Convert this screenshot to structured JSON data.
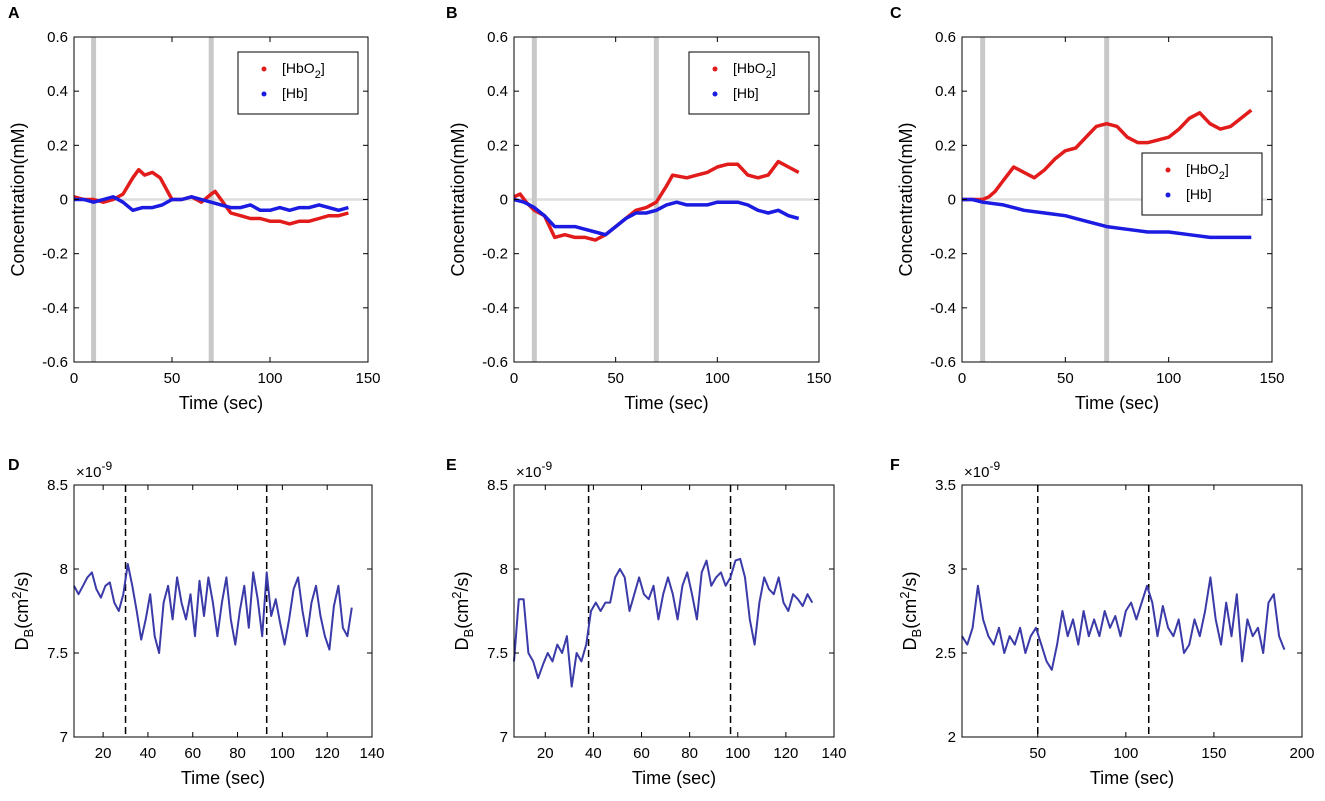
{
  "colors": {
    "hbo2": "#e21b1b",
    "hb": "#1b1be2",
    "db": "#3a3aa8",
    "marker": "#c8c8c8",
    "zero": "#dddddd",
    "dashed": "#000000"
  },
  "chart_data": [
    {
      "panel": "A",
      "type": "line",
      "xlabel": "Time  (sec)",
      "ylabel": "Concentration(mM)",
      "xlim": [
        0,
        150
      ],
      "ylim": [
        -0.6,
        0.6
      ],
      "xticks": [
        0,
        50,
        100,
        150
      ],
      "xtick_labels": [
        "0",
        "50",
        "100",
        "150"
      ],
      "yticks": [
        -0.6,
        -0.4,
        -0.2,
        0,
        0.2,
        0.4,
        0.6
      ],
      "ytick_labels": [
        "-0.6",
        "-0.4",
        "-0.2",
        "0",
        "0.2",
        "0.4",
        "0.6"
      ],
      "markers": [
        10,
        70
      ],
      "legend_position": "top-right",
      "series": [
        {
          "name": "[HbO2]",
          "label_main": "[HbO",
          "label_sub": "2",
          "label_tail": "]",
          "color_key": "hbo2",
          "x": [
            0,
            5,
            10,
            15,
            20,
            25,
            30,
            33,
            36,
            40,
            44,
            47,
            50,
            55,
            60,
            65,
            70,
            72,
            75,
            80,
            85,
            90,
            95,
            100,
            105,
            110,
            115,
            120,
            125,
            130,
            135,
            140
          ],
          "y": [
            0.01,
            0.0,
            0.0,
            -0.01,
            0.0,
            0.02,
            0.08,
            0.11,
            0.09,
            0.1,
            0.08,
            0.04,
            0.0,
            0.0,
            0.01,
            -0.01,
            0.02,
            0.03,
            0.0,
            -0.05,
            -0.06,
            -0.07,
            -0.07,
            -0.08,
            -0.08,
            -0.09,
            -0.08,
            -0.08,
            -0.07,
            -0.06,
            -0.06,
            -0.05
          ]
        },
        {
          "name": "[Hb]",
          "label_main": "[Hb]",
          "label_sub": "",
          "label_tail": "",
          "color_key": "hb",
          "x": [
            0,
            5,
            10,
            15,
            20,
            25,
            30,
            35,
            40,
            45,
            50,
            55,
            60,
            65,
            70,
            75,
            80,
            85,
            90,
            95,
            100,
            105,
            110,
            115,
            120,
            125,
            130,
            135,
            140
          ],
          "y": [
            0.0,
            0.0,
            -0.01,
            0.0,
            0.01,
            -0.01,
            -0.04,
            -0.03,
            -0.03,
            -0.02,
            0.0,
            0.0,
            0.01,
            0.0,
            -0.01,
            -0.02,
            -0.03,
            -0.03,
            -0.02,
            -0.04,
            -0.04,
            -0.03,
            -0.04,
            -0.03,
            -0.03,
            -0.02,
            -0.03,
            -0.04,
            -0.03
          ]
        }
      ]
    },
    {
      "panel": "B",
      "type": "line",
      "xlabel": "Time  (sec)",
      "ylabel": "Concentration(mM)",
      "xlim": [
        0,
        150
      ],
      "ylim": [
        -0.6,
        0.6
      ],
      "xticks": [
        0,
        50,
        100,
        150
      ],
      "xtick_labels": [
        "0",
        "50",
        "100",
        "150"
      ],
      "yticks": [
        -0.6,
        -0.4,
        -0.2,
        0,
        0.2,
        0.4,
        0.6
      ],
      "ytick_labels": [
        "-0.6",
        "-0.4",
        "-0.2",
        "0",
        "0.2",
        "0.4",
        "0.6"
      ],
      "markers": [
        10,
        70
      ],
      "legend_position": "top-right",
      "series": [
        {
          "name": "[HbO2]",
          "label_main": "[HbO",
          "label_sub": "2",
          "label_tail": "]",
          "color_key": "hbo2",
          "x": [
            0,
            3,
            6,
            10,
            15,
            20,
            25,
            30,
            35,
            40,
            45,
            50,
            55,
            60,
            65,
            70,
            75,
            78,
            85,
            90,
            95,
            100,
            105,
            110,
            115,
            120,
            125,
            130,
            135,
            140
          ],
          "y": [
            0.01,
            0.02,
            -0.01,
            -0.04,
            -0.06,
            -0.14,
            -0.13,
            -0.14,
            -0.14,
            -0.15,
            -0.13,
            -0.1,
            -0.07,
            -0.04,
            -0.03,
            -0.01,
            0.05,
            0.09,
            0.08,
            0.09,
            0.1,
            0.12,
            0.13,
            0.13,
            0.09,
            0.08,
            0.09,
            0.14,
            0.12,
            0.1
          ]
        },
        {
          "name": "[Hb]",
          "label_main": "[Hb]",
          "label_sub": "",
          "label_tail": "",
          "color_key": "hb",
          "x": [
            0,
            5,
            10,
            15,
            20,
            25,
            30,
            35,
            40,
            45,
            50,
            55,
            60,
            65,
            70,
            75,
            80,
            85,
            90,
            95,
            100,
            105,
            110,
            115,
            120,
            125,
            130,
            135,
            140
          ],
          "y": [
            0.0,
            -0.01,
            -0.03,
            -0.06,
            -0.1,
            -0.1,
            -0.1,
            -0.11,
            -0.12,
            -0.13,
            -0.1,
            -0.07,
            -0.05,
            -0.05,
            -0.04,
            -0.02,
            -0.01,
            -0.02,
            -0.02,
            -0.02,
            -0.01,
            -0.01,
            -0.01,
            -0.02,
            -0.04,
            -0.05,
            -0.04,
            -0.06,
            -0.07
          ]
        }
      ]
    },
    {
      "panel": "C",
      "type": "line",
      "xlabel": "Time  (sec)",
      "ylabel": "Concentration(mM)",
      "xlim": [
        0,
        150
      ],
      "ylim": [
        -0.6,
        0.6
      ],
      "xticks": [
        0,
        50,
        100,
        150
      ],
      "xtick_labels": [
        "0",
        "50",
        "100",
        "150"
      ],
      "yticks": [
        -0.6,
        -0.4,
        -0.2,
        0,
        0.2,
        0.4,
        0.6
      ],
      "ytick_labels": [
        "-0.6",
        "-0.4",
        "-0.2",
        "0",
        "0.2",
        "0.4",
        "0.6"
      ],
      "markers": [
        10,
        70
      ],
      "legend_position": "right",
      "series": [
        {
          "name": "[HbO2]",
          "label_main": "[HbO",
          "label_sub": "2",
          "label_tail": "]",
          "color_key": "hbo2",
          "x": [
            0,
            5,
            10,
            13,
            16,
            20,
            25,
            30,
            35,
            40,
            45,
            50,
            55,
            60,
            65,
            70,
            75,
            80,
            85,
            90,
            95,
            100,
            105,
            110,
            115,
            120,
            125,
            130,
            135,
            140
          ],
          "y": [
            0.0,
            0.0,
            0.0,
            0.01,
            0.03,
            0.07,
            0.12,
            0.1,
            0.08,
            0.11,
            0.15,
            0.18,
            0.19,
            0.23,
            0.27,
            0.28,
            0.27,
            0.23,
            0.21,
            0.21,
            0.22,
            0.23,
            0.26,
            0.3,
            0.32,
            0.28,
            0.26,
            0.27,
            0.3,
            0.33
          ]
        },
        {
          "name": "[Hb]",
          "label_main": "[Hb]",
          "label_sub": "",
          "label_tail": "",
          "color_key": "hb",
          "x": [
            0,
            5,
            10,
            20,
            30,
            40,
            50,
            60,
            70,
            80,
            90,
            100,
            110,
            120,
            130,
            140
          ],
          "y": [
            0.0,
            0.0,
            -0.01,
            -0.02,
            -0.04,
            -0.05,
            -0.06,
            -0.08,
            -0.1,
            -0.11,
            -0.12,
            -0.12,
            -0.13,
            -0.14,
            -0.14,
            -0.14
          ]
        }
      ]
    },
    {
      "panel": "D",
      "type": "line",
      "xlabel": "Time  (sec)",
      "ylabel_main": "D",
      "ylabel_sub": "B",
      "ylabel_unit_a": "(cm",
      "ylabel_sup": "2",
      "ylabel_unit_b": "/s)",
      "multiplier_base": "×10",
      "multiplier_exp": "-9",
      "xlim": [
        7,
        140
      ],
      "ylim": [
        7,
        8.5
      ],
      "xticks": [
        20,
        40,
        60,
        80,
        100,
        120,
        140
      ],
      "xtick_labels": [
        "20",
        "40",
        "60",
        "80",
        "100",
        "120",
        "140"
      ],
      "yticks": [
        7,
        7.5,
        8,
        8.5
      ],
      "ytick_labels": [
        "7",
        "7.5",
        "8",
        "8.5"
      ],
      "vlines": [
        30,
        93
      ],
      "series": [
        {
          "name": "DB",
          "color_key": "db",
          "x": [
            7,
            9,
            11,
            13,
            15,
            17,
            19,
            21,
            23,
            25,
            27,
            29,
            31,
            33,
            35,
            37,
            39,
            41,
            43,
            45,
            47,
            49,
            51,
            53,
            55,
            57,
            59,
            61,
            63,
            65,
            67,
            69,
            71,
            73,
            75,
            77,
            79,
            81,
            83,
            85,
            87,
            89,
            91,
            93,
            95,
            97,
            99,
            101,
            103,
            105,
            107,
            109,
            111,
            113,
            115,
            117,
            119,
            121,
            123,
            125,
            127,
            129,
            131
          ],
          "y": [
            7.9,
            7.85,
            7.9,
            7.95,
            7.98,
            7.88,
            7.83,
            7.9,
            7.92,
            7.8,
            7.75,
            7.85,
            8.03,
            7.9,
            7.75,
            7.58,
            7.7,
            7.85,
            7.6,
            7.5,
            7.8,
            7.9,
            7.7,
            7.95,
            7.8,
            7.7,
            7.85,
            7.6,
            7.93,
            7.72,
            7.95,
            7.8,
            7.6,
            7.8,
            7.95,
            7.7,
            7.55,
            7.75,
            7.9,
            7.65,
            7.98,
            7.82,
            7.6,
            7.98,
            7.72,
            7.82,
            7.68,
            7.55,
            7.7,
            7.88,
            7.95,
            7.75,
            7.6,
            7.8,
            7.9,
            7.72,
            7.6,
            7.52,
            7.78,
            7.9,
            7.65,
            7.6,
            7.77
          ]
        }
      ]
    },
    {
      "panel": "E",
      "type": "line",
      "xlabel": "Time  (sec)",
      "ylabel_main": "D",
      "ylabel_sub": "B",
      "ylabel_unit_a": "(cm",
      "ylabel_sup": "2",
      "ylabel_unit_b": "/s)",
      "multiplier_base": "×10",
      "multiplier_exp": "-9",
      "xlim": [
        7,
        140
      ],
      "ylim": [
        7,
        8.5
      ],
      "xticks": [
        20,
        40,
        60,
        80,
        100,
        120,
        140
      ],
      "xtick_labels": [
        "20",
        "40",
        "60",
        "80",
        "100",
        "120",
        "140"
      ],
      "yticks": [
        7,
        7.5,
        8,
        8.5
      ],
      "ytick_labels": [
        "7",
        "7.5",
        "8",
        "8.5"
      ],
      "vlines": [
        38,
        97
      ],
      "series": [
        {
          "name": "DB",
          "color_key": "db",
          "x": [
            7,
            9,
            11,
            13,
            15,
            17,
            19,
            21,
            23,
            25,
            27,
            29,
            31,
            33,
            35,
            37,
            39,
            41,
            43,
            45,
            47,
            49,
            51,
            53,
            55,
            57,
            59,
            61,
            63,
            65,
            67,
            69,
            71,
            73,
            75,
            77,
            79,
            81,
            83,
            85,
            87,
            89,
            91,
            93,
            95,
            97,
            99,
            101,
            103,
            105,
            107,
            109,
            111,
            113,
            115,
            117,
            119,
            121,
            123,
            125,
            127,
            129,
            131
          ],
          "y": [
            7.45,
            7.82,
            7.82,
            7.5,
            7.45,
            7.35,
            7.43,
            7.5,
            7.45,
            7.55,
            7.5,
            7.6,
            7.3,
            7.5,
            7.45,
            7.55,
            7.75,
            7.8,
            7.75,
            7.8,
            7.8,
            7.95,
            8.0,
            7.95,
            7.75,
            7.85,
            7.95,
            7.85,
            7.82,
            7.9,
            7.7,
            7.85,
            7.95,
            7.85,
            7.7,
            7.9,
            7.98,
            7.85,
            7.7,
            7.98,
            8.05,
            7.9,
            7.95,
            7.98,
            7.9,
            7.95,
            8.05,
            8.06,
            7.95,
            7.7,
            7.55,
            7.8,
            7.95,
            7.88,
            7.85,
            7.95,
            7.8,
            7.75,
            7.85,
            7.82,
            7.78,
            7.85,
            7.8
          ]
        }
      ]
    },
    {
      "panel": "F",
      "type": "line",
      "xlabel": "Time  (sec)",
      "ylabel_main": "D",
      "ylabel_sub": "B",
      "ylabel_unit_a": "(cm",
      "ylabel_sup": "2",
      "ylabel_unit_b": "/s)",
      "multiplier_base": "×10",
      "multiplier_exp": "-9",
      "xlim": [
        7,
        200
      ],
      "ylim": [
        2,
        3.5
      ],
      "xticks": [
        50,
        100,
        150,
        200
      ],
      "xtick_labels": [
        "50",
        "100",
        "150",
        "200"
      ],
      "yticks": [
        2,
        2.5,
        3,
        3.5
      ],
      "ytick_labels": [
        "2",
        "2.5",
        "3",
        "3.5"
      ],
      "vlines": [
        50,
        113
      ],
      "series": [
        {
          "name": "DB",
          "color_key": "db",
          "x": [
            7,
            10,
            13,
            16,
            19,
            22,
            25,
            28,
            31,
            34,
            37,
            40,
            43,
            46,
            49,
            52,
            55,
            58,
            61,
            64,
            67,
            70,
            73,
            76,
            79,
            82,
            85,
            88,
            91,
            94,
            97,
            100,
            103,
            106,
            109,
            112,
            115,
            118,
            121,
            124,
            127,
            130,
            133,
            136,
            139,
            142,
            145,
            148,
            151,
            154,
            157,
            160,
            163,
            166,
            169,
            172,
            175,
            178,
            181,
            184,
            187,
            190
          ],
          "y": [
            2.6,
            2.55,
            2.65,
            2.9,
            2.7,
            2.6,
            2.55,
            2.65,
            2.5,
            2.6,
            2.55,
            2.65,
            2.5,
            2.6,
            2.65,
            2.55,
            2.45,
            2.4,
            2.55,
            2.75,
            2.6,
            2.7,
            2.55,
            2.75,
            2.6,
            2.7,
            2.6,
            2.75,
            2.65,
            2.72,
            2.6,
            2.75,
            2.8,
            2.7,
            2.8,
            2.9,
            2.8,
            2.6,
            2.78,
            2.65,
            2.6,
            2.7,
            2.5,
            2.55,
            2.7,
            2.6,
            2.75,
            2.95,
            2.7,
            2.55,
            2.8,
            2.6,
            2.85,
            2.45,
            2.7,
            2.6,
            2.65,
            2.5,
            2.8,
            2.85,
            2.6,
            2.52
          ]
        }
      ]
    }
  ]
}
